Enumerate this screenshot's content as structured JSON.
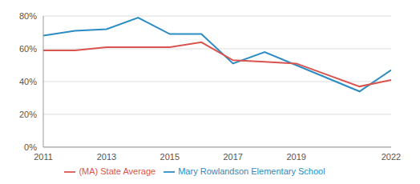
{
  "chart_data": {
    "type": "line",
    "x": [
      2011,
      2012,
      2013,
      2014,
      2015,
      2016,
      2017,
      2018,
      2019,
      2021,
      2022
    ],
    "series": [
      {
        "name": "Mary Rowlandson Elementary School",
        "color": "#2b8cc4",
        "values": [
          68,
          71,
          72,
          79,
          69,
          69,
          51,
          58,
          50,
          34,
          47
        ]
      },
      {
        "name": "(MA) State Average",
        "color": "#d9534f",
        "values": [
          59,
          59,
          61,
          61,
          61,
          64,
          53,
          52,
          51,
          37,
          41
        ]
      }
    ],
    "xlim": [
      2011,
      2022
    ],
    "xticks": [
      2011,
      2013,
      2015,
      2017,
      2019,
      2022
    ],
    "ylim": [
      0,
      80
    ],
    "yticks": [
      {
        "value": 0,
        "label": "0%"
      },
      {
        "value": 20,
        "label": "20%"
      },
      {
        "value": 40,
        "label": "40%"
      },
      {
        "value": 60,
        "label": "60%"
      },
      {
        "value": 80,
        "label": "80%"
      }
    ],
    "grid": true,
    "legend": "bottom"
  }
}
